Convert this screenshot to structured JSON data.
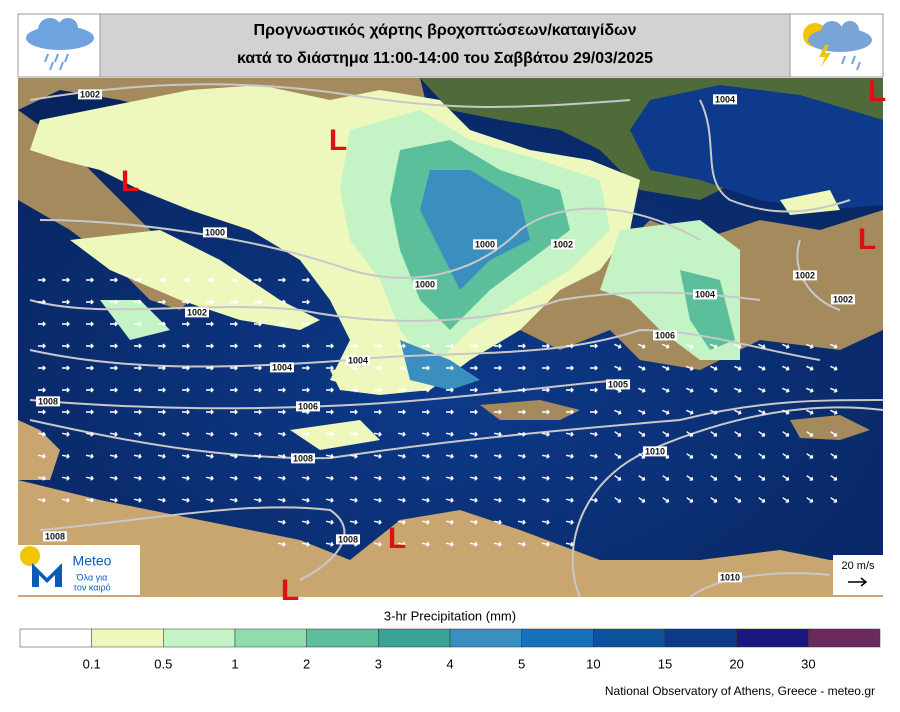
{
  "header": {
    "title_line1": "Προγνωστικός χάρτης βροχοπτώσεων/καταιγίδων",
    "title_line2": "κατά το διάστημα 11:00-14:00 του Σαββάτου 29/03/2025"
  },
  "map": {
    "isobar_labels": [
      "1002",
      "1004",
      "1000",
      "1000",
      "1002",
      "1002",
      "1002",
      "1000",
      "1002",
      "1004",
      "1006",
      "1004",
      "1004",
      "1008",
      "1006",
      "1005",
      "1010",
      "1008",
      "1008",
      "1008",
      "1010"
    ],
    "lows": [
      "L",
      "L",
      "L",
      "L",
      "L",
      "L"
    ],
    "wind_reference": "20 m/s",
    "logo": {
      "name": "Meteo",
      "tagline_line1": "Όλα για",
      "tagline_line2": "τον καιρό"
    }
  },
  "colorbar": {
    "title": "3-hr Precipitation (mm)",
    "colors": [
      "#ffffff",
      "#eef8bd",
      "#c4f3c6",
      "#8fdcae",
      "#5bbf9c",
      "#3aa396",
      "#3a8fbf",
      "#1870b8",
      "#0e529c",
      "#0d3a86",
      "#18187e",
      "#6a2a5c",
      "#2a0a46"
    ],
    "ticks": [
      0.1,
      0.5,
      1,
      2,
      3,
      4,
      5,
      10,
      15,
      20,
      30
    ]
  },
  "credit": "National Observatory of Athens, Greece - meteo.gr"
}
